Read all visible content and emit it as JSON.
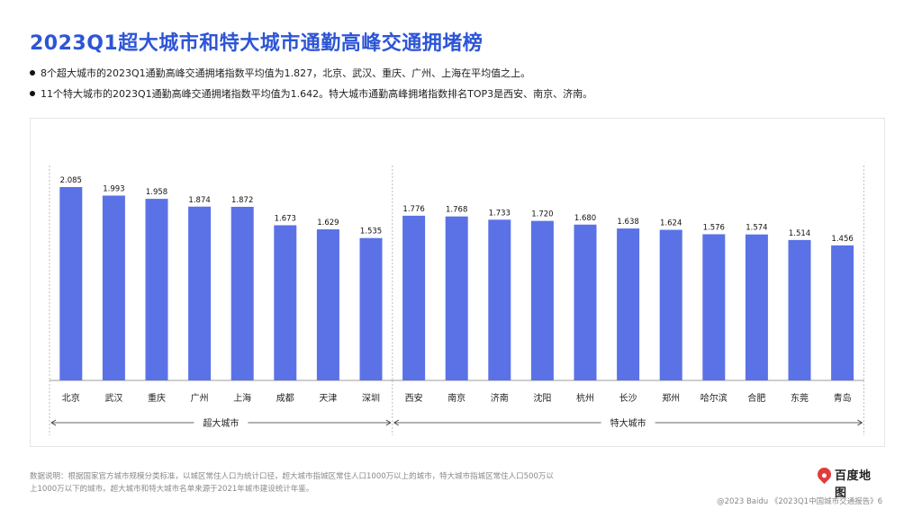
{
  "title": "2023Q1超大城市和特大城市通勤高峰交通拥堵榜",
  "bullets": [
    "8个超大城市的2023Q1通勤高峰交通拥堵指数平均值为1.827，北京、武汉、重庆、广州、上海在平均值之上。",
    "11个特大城市的2023Q1通勤高峰交通拥堵指数平均值为1.642。特大城市通勤高峰拥堵指数排名TOP3是西安、南京、济南。"
  ],
  "chart_data": {
    "type": "bar",
    "categories": [
      "北京",
      "武汉",
      "重庆",
      "广州",
      "上海",
      "成都",
      "天津",
      "深圳",
      "西安",
      "南京",
      "济南",
      "沈阳",
      "杭州",
      "长沙",
      "郑州",
      "哈尔滨",
      "合肥",
      "东莞",
      "青岛"
    ],
    "values": [
      2.085,
      1.993,
      1.958,
      1.874,
      1.872,
      1.673,
      1.629,
      1.535,
      1.776,
      1.768,
      1.733,
      1.72,
      1.68,
      1.638,
      1.624,
      1.576,
      1.574,
      1.514,
      1.456
    ],
    "value_labels": [
      "2.085",
      "1.993",
      "1.958",
      "1.874",
      "1.872",
      "1.673",
      "1.629",
      "1.535",
      "1.776",
      "1.768",
      "1.733",
      "1.720",
      "1.680",
      "1.638",
      "1.624",
      "1.576",
      "1.574",
      "1.514",
      "1.456"
    ],
    "groups": [
      {
        "name": "超大城市",
        "count": 8
      },
      {
        "name": "特大城市",
        "count": 11
      }
    ],
    "ylim": [
      0,
      2.2
    ],
    "bar_color": "#5a72e6",
    "grid": false
  },
  "footnote": "数据说明：根据国家官方城市规模分类标准，以城区常住人口为统计口径，超大城市指城区常住人口1000万以上的城市，特大城市指城区常住人口500万以上1000万以下的城市。超大城市和特大城市名单来源于2021年城市建设统计年鉴。",
  "footer": "@2023 Baidu 《2023Q1中国城市交通报告》6",
  "logo": {
    "text": "百度地图",
    "icon": "baidu-map-pin-icon"
  }
}
